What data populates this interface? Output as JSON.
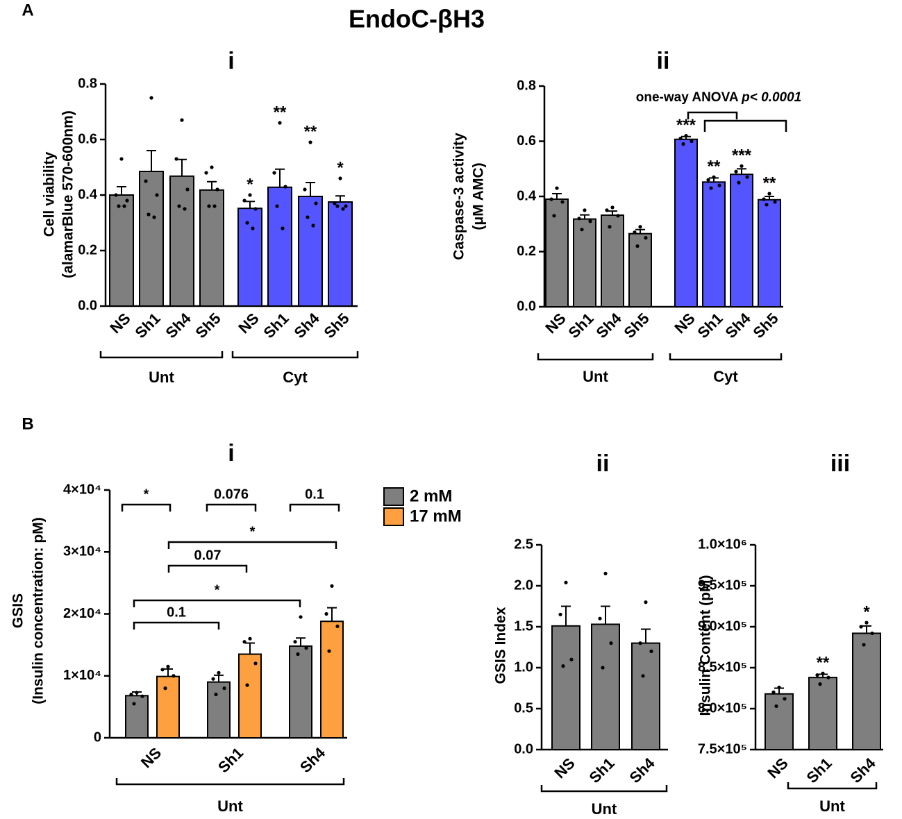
{
  "figure_title": "EndoC-βH3",
  "panel_labels": [
    "A",
    "B"
  ],
  "chart_data": [
    {
      "type": "bar",
      "title": "i",
      "ylabel": [
        "Cell viability",
        "(alamarBlue 570-600nm)"
      ],
      "categories": [
        "NS",
        "Sh1",
        "Sh4",
        "Sh5",
        "NS",
        "Sh1",
        "Sh4",
        "Sh5"
      ],
      "group_labels": [
        "Unt",
        "Cyt"
      ],
      "ylim": [
        0,
        0.8
      ],
      "yticks": [
        {
          "value": 0,
          "label": "0.0"
        },
        0.2,
        0.4,
        0.6,
        0.8
      ],
      "series": [
        {
          "colors": [
            "#7f7f7f",
            "#7f7f7f",
            "#7f7f7f",
            "#7f7f7f",
            "#5555ff",
            "#5555ff",
            "#5555ff",
            "#5555ff"
          ],
          "values": [
            0.4,
            0.485,
            0.468,
            0.418,
            0.352,
            0.428,
            0.395,
            0.375
          ],
          "errors": [
            0.03,
            0.075,
            0.06,
            0.03,
            0.025,
            0.065,
            0.05,
            0.022
          ],
          "annotations": [
            null,
            null,
            null,
            null,
            "*",
            "**",
            "**",
            "*"
          ],
          "points": [
            [
              0.53,
              0.4,
              0.38,
              0.36,
              0.36
            ],
            [
              0.75,
              0.45,
              0.4,
              0.33,
              0.32
            ],
            [
              0.67,
              0.53,
              0.42,
              0.36,
              0.35
            ],
            [
              0.5,
              0.48,
              0.42,
              0.36,
              0.36
            ],
            [
              0.4,
              0.38,
              0.35,
              0.3,
              0.28
            ],
            [
              0.66,
              0.48,
              0.43,
              0.36,
              0.28
            ],
            [
              0.59,
              0.42,
              0.37,
              0.32,
              0.29
            ],
            [
              0.46,
              0.37,
              0.36,
              0.36,
              0.35
            ]
          ]
        }
      ]
    },
    {
      "type": "bar",
      "title": "ii",
      "ylabel": [
        "Caspase-3 activity",
        "(μM AMC)"
      ],
      "categories": [
        "NS",
        "Sh1",
        "Sh4",
        "Sh5",
        "NS",
        "Sh1",
        "Sh4",
        "Sh5"
      ],
      "group_labels": [
        "Unt",
        "Cyt"
      ],
      "annotation": [
        "one-way ANOVA ",
        "p< 0.0001"
      ],
      "ylim": [
        0,
        0.8
      ],
      "yticks": [
        {
          "value": 0,
          "label": "0.0"
        },
        0.2,
        0.4,
        0.6,
        0.8
      ],
      "series": [
        {
          "colors": [
            "#7f7f7f",
            "#7f7f7f",
            "#7f7f7f",
            "#7f7f7f",
            "#5555ff",
            "#5555ff",
            "#5555ff",
            "#5555ff"
          ],
          "values": [
            0.39,
            0.318,
            0.332,
            0.265,
            0.607,
            0.452,
            0.48,
            0.388
          ],
          "errors": [
            0.02,
            0.015,
            0.015,
            0.015,
            0.01,
            0.015,
            0.02,
            0.012
          ],
          "annotations": [
            null,
            null,
            null,
            null,
            "***",
            "**",
            "***",
            "**"
          ],
          "points": [
            [
              0.43,
              0.39,
              0.38,
              0.33
            ],
            [
              0.35,
              0.32,
              0.31,
              0.28
            ],
            [
              0.36,
              0.35,
              0.33,
              0.29
            ],
            [
              0.29,
              0.27,
              0.25,
              0.22
            ],
            [
              0.62,
              0.61,
              0.6,
              0.59
            ],
            [
              0.47,
              0.46,
              0.44,
              0.43
            ],
            [
              0.51,
              0.49,
              0.47,
              0.45
            ],
            [
              0.41,
              0.39,
              0.38,
              0.37
            ]
          ]
        }
      ]
    },
    {
      "type": "bar",
      "title": "i",
      "ylabel": [
        "GSIS",
        "(Insulin concentration: pM)"
      ],
      "categories": [
        "NS",
        "Sh1",
        "Sh4"
      ],
      "group_labels": [
        "Unt"
      ],
      "comparisons": [
        "*",
        "0.076",
        "0.1",
        "*",
        "0.07",
        "*",
        "0.1"
      ],
      "ylim": [
        0,
        40000
      ],
      "yticks": [
        0,
        {
          "value": 10000,
          "label": "1×10⁴"
        },
        {
          "value": 20000,
          "label": "2×10⁴"
        },
        {
          "value": 30000,
          "label": "3×10⁴"
        },
        {
          "value": 40000,
          "label": "4×10⁴"
        }
      ],
      "series": [
        {
          "name": "2 mM",
          "color": "#7f7f7f",
          "values": [
            6800,
            9000,
            14800
          ],
          "errors": [
            600,
            1100,
            1300
          ],
          "points": [
            [
              7300,
              7000,
              6700,
              5500
            ],
            [
              10500,
              9500,
              8000,
              7000
            ],
            [
              19500,
              15500,
              14500,
              13500
            ]
          ]
        },
        {
          "name": "17 mM",
          "color": "#ffa040",
          "values": [
            9900,
            13500,
            18800
          ],
          "errors": [
            1200,
            1800,
            2200
          ],
          "points": [
            [
              11500,
              11000,
              10000,
              8000
            ],
            [
              16000,
              15500,
              12000,
              8500
            ],
            [
              24500,
              20000,
              18000,
              14000
            ]
          ]
        }
      ]
    },
    {
      "type": "bar",
      "title": "ii",
      "ylabel": [
        "GSIS Index"
      ],
      "categories": [
        "NS",
        "Sh1",
        "Sh4"
      ],
      "group_labels": [
        "Unt"
      ],
      "ylim": [
        0,
        2.5
      ],
      "yticks": [
        {
          "value": 0,
          "label": "0.0"
        },
        0.5,
        {
          "value": 1,
          "label": "1.0"
        },
        1.5,
        {
          "value": 2,
          "label": "2.0"
        },
        2.5
      ],
      "series": [
        {
          "color": "#7f7f7f",
          "values": [
            1.51,
            1.53,
            1.3
          ],
          "errors": [
            0.24,
            0.22,
            0.17
          ],
          "points": [
            [
              2.04,
              1.65,
              1.1,
              1.02
            ],
            [
              2.15,
              1.6,
              1.3,
              1.0
            ],
            [
              1.8,
              1.3,
              1.2,
              0.9
            ]
          ]
        }
      ]
    },
    {
      "type": "bar",
      "title": "iii",
      "ylabel": [
        "Insulin Content (pM)"
      ],
      "categories": [
        "NS",
        "Sh1",
        "Sh4"
      ],
      "group_labels": [
        "Unt"
      ],
      "ylim": [
        750000,
        1000000
      ],
      "yticks": [
        {
          "value": 750000,
          "label": "7.5×10⁵"
        },
        {
          "value": 800000,
          "label": "8.0×10⁵"
        },
        {
          "value": 850000,
          "label": "8.5×10⁵"
        },
        {
          "value": 900000,
          "label": "9.0×10⁵"
        },
        {
          "value": 950000,
          "label": "9.5×10⁵"
        },
        {
          "value": 1000000,
          "label": "1.0×10⁶"
        }
      ],
      "series": [
        {
          "color": "#7f7f7f",
          "values": [
            818000,
            838000,
            892000
          ],
          "errors": [
            7000,
            4000,
            9000
          ],
          "annotations": [
            null,
            "**",
            "*"
          ],
          "points": [
            [
              826000,
              820000,
              812000,
              803000
            ],
            [
              843000,
              841000,
              838000,
              830000
            ],
            [
              905000,
              900000,
              892000,
              878000
            ]
          ]
        }
      ]
    }
  ]
}
